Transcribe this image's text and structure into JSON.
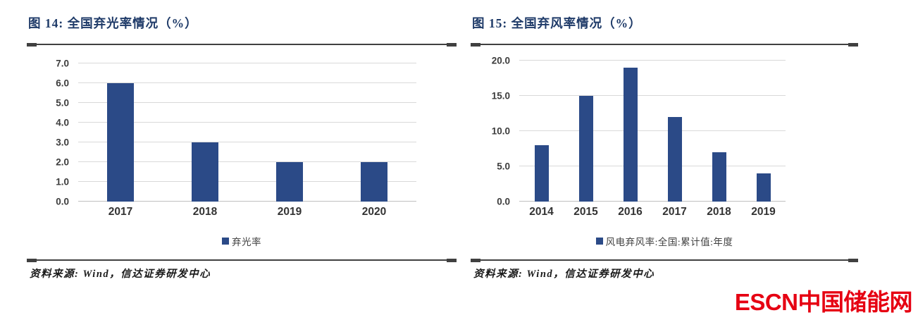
{
  "page": {
    "background": "#FFFFFF"
  },
  "footer": {
    "logo_text": "ESCN中国储能网",
    "logo_color": "#E60012"
  },
  "chart_data": [
    {
      "type": "bar",
      "title": "图 14:  全国弃光率情况（%）",
      "categories": [
        "2017",
        "2018",
        "2019",
        "2020"
      ],
      "values": [
        6.0,
        3.0,
        2.0,
        2.0
      ],
      "legend": [
        "弃光率"
      ],
      "xlabel": "",
      "ylabel": "",
      "ylim": [
        0,
        7
      ],
      "yticks": [
        0,
        1,
        2,
        3,
        4,
        5,
        6,
        7
      ],
      "ytick_labels": [
        "0.0",
        "1.0",
        "2.0",
        "3.0",
        "4.0",
        "5.0",
        "6.0",
        "7.0"
      ],
      "grid": true,
      "legend_position": "bottom",
      "bar_color": "#2B4A87",
      "title_color": "#1E3A68",
      "source": "资料来源: Wind，信达证券研发中心"
    },
    {
      "type": "bar",
      "title": "图 15:  全国弃风率情况（%）",
      "categories": [
        "2014",
        "2015",
        "2016",
        "2017",
        "2018",
        "2019"
      ],
      "values": [
        8.0,
        15.0,
        19.0,
        12.0,
        7.0,
        4.0
      ],
      "legend": [
        "风电弃风率:全国:累计值:年度"
      ],
      "xlabel": "",
      "ylabel": "",
      "ylim": [
        0,
        20
      ],
      "yticks": [
        0,
        5,
        10,
        15,
        20
      ],
      "ytick_labels": [
        "0.0",
        "5.0",
        "10.0",
        "15.0",
        "20.0"
      ],
      "grid": true,
      "legend_position": "bottom",
      "bar_color": "#2B4A87",
      "title_color": "#1E3A68",
      "source": "资料来源: Wind，信达证券研发中心"
    }
  ]
}
